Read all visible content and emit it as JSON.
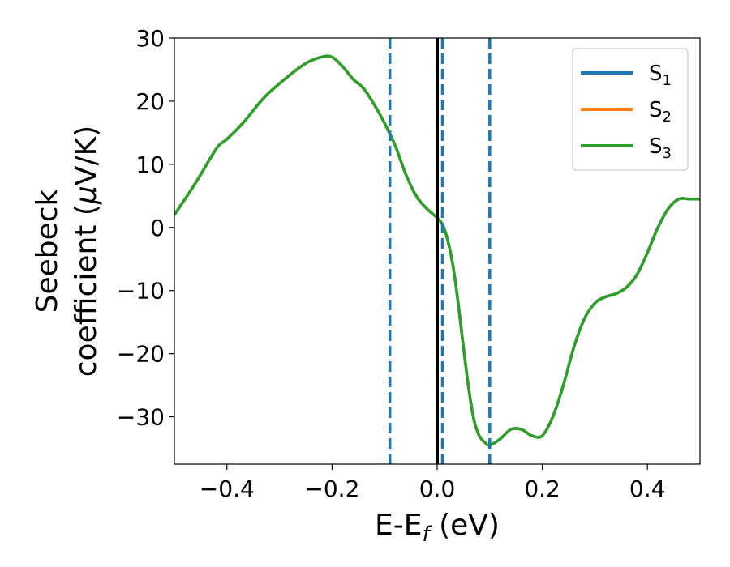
{
  "chart_data": {
    "type": "line",
    "title": "",
    "xlabel": {
      "main": "E-E",
      "sub": "f",
      "unit": " (eV)"
    },
    "ylabel": {
      "line1": "Seebeck",
      "line2_prefix": "coefficient  (",
      "line2_mu": "μ",
      "line2_suffix": "V/K)"
    },
    "xlim": [
      -0.5,
      0.5
    ],
    "ylim": [
      -37.5,
      30
    ],
    "xticks": [
      -0.4,
      -0.2,
      0.0,
      0.2,
      0.4
    ],
    "xtick_labels": [
      "−0.4",
      "−0.2",
      "0.0",
      "0.2",
      "0.4"
    ],
    "yticks": [
      30,
      20,
      10,
      0,
      -10,
      -20,
      -30
    ],
    "ytick_labels": [
      "30",
      "20",
      "10",
      "0",
      "−10",
      "−20",
      "−30"
    ],
    "legend_position": "top-right",
    "colors": {
      "S1": "#1f77b4",
      "S2": "#ff7f0e",
      "S3": "#2ca02c"
    },
    "series": [
      {
        "name": "S",
        "sub": "1",
        "color": "#1f77b4",
        "note_overlapped": true
      },
      {
        "name": "S",
        "sub": "2",
        "color": "#ff7f0e",
        "note_overlapped": true
      },
      {
        "name": "S",
        "sub": "3",
        "color": "#2ca02c"
      }
    ],
    "x": [
      -0.5,
      -0.46,
      -0.42,
      -0.4,
      -0.37,
      -0.33,
      -0.29,
      -0.25,
      -0.22,
      -0.2,
      -0.18,
      -0.16,
      -0.14,
      -0.12,
      -0.1,
      -0.08,
      -0.06,
      -0.04,
      -0.02,
      0.0,
      0.01,
      0.02,
      0.03,
      0.04,
      0.05,
      0.06,
      0.07,
      0.08,
      0.09,
      0.1,
      0.12,
      0.14,
      0.16,
      0.18,
      0.2,
      0.22,
      0.24,
      0.26,
      0.28,
      0.3,
      0.32,
      0.34,
      0.36,
      0.38,
      0.4,
      0.42,
      0.44,
      0.46,
      0.48,
      0.5
    ],
    "y": [
      2,
      7,
      12.5,
      14,
      16.5,
      20.5,
      23.5,
      26,
      27,
      27,
      25.5,
      23.5,
      22,
      19.5,
      16.5,
      13,
      8.5,
      5,
      3,
      1.5,
      0.5,
      -2,
      -6,
      -12,
      -19,
      -25.5,
      -30.5,
      -33,
      -34,
      -34.5,
      -33.5,
      -32,
      -32,
      -33,
      -33,
      -30,
      -25,
      -19,
      -14.5,
      -12,
      -11,
      -10.5,
      -9.5,
      -7.5,
      -4,
      0,
      3,
      4.5,
      4.5,
      4.5
    ],
    "vlines": [
      {
        "x": 0.0,
        "style": "solid",
        "color": "#000000"
      },
      {
        "x": -0.09,
        "style": "dashed",
        "color": "#1f77b4"
      },
      {
        "x": 0.01,
        "style": "dashed",
        "color": "#1f77b4"
      },
      {
        "x": 0.1,
        "style": "dashed",
        "color": "#1f77b4"
      }
    ],
    "grid": false
  }
}
